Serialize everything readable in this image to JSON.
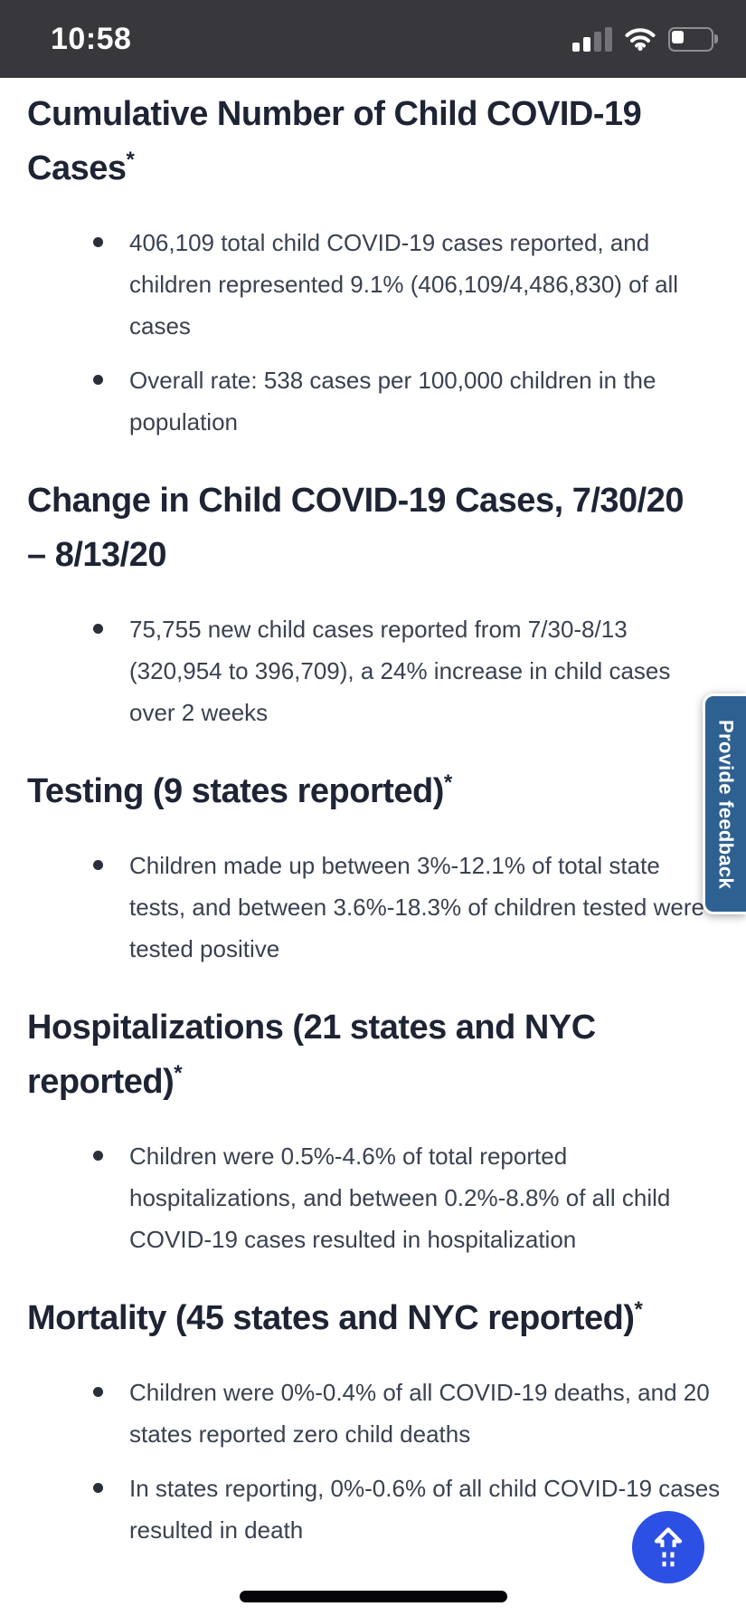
{
  "status_bar": {
    "time": "10:58",
    "signal_level": "2 of 4 bars",
    "wifi": "full",
    "battery_level": "low"
  },
  "page": {
    "sections": [
      {
        "heading": "Cumulative Number of Child COVID-19\nCases",
        "heading_sup": "*",
        "bullets": [
          "406,109 total child COVID-19 cases reported, and children represented 9.1% (406,109/4,486,830) of all cases",
          "Overall rate: 538 cases per 100,000 children in the population"
        ]
      },
      {
        "heading": "Change in Child COVID-19 Cases, 7/30/20\n– 8/13/20",
        "heading_sup": "",
        "bullets": [
          "75,755 new child cases reported from 7/30-8/13 (320,954 to 396,709), a 24% increase in child cases over 2 weeks"
        ]
      },
      {
        "heading": "Testing (9 states reported)",
        "heading_sup": "*",
        "bullets": [
          "Children made up between 3%-12.1% of total state tests, and between 3.6%-18.3% of children tested were tested positive"
        ]
      },
      {
        "heading": "Hospitalizations (21 states and NYC\nreported)",
        "heading_sup": "*",
        "bullets": [
          "Children were 0.5%-4.6% of total reported hospitalizations, and between 0.2%-8.8% of all child COVID-19 cases resulted in hospitalization"
        ]
      },
      {
        "heading": "Mortality (45 states and NYC reported)",
        "heading_sup": "*",
        "bullets": [
          "Children were 0%-0.4% of all COVID-19 deaths, and 20 states reported zero child deaths",
          "In states reporting, 0%-0.6% of all child COVID-19 cases resulted in death"
        ]
      }
    ]
  },
  "feedback_tab": {
    "label": "Provide feedback"
  },
  "scroll_top_button": {
    "icon": "arrow-up-dashed-icon"
  },
  "colors": {
    "status_bar_bg": "#38383c",
    "heading_text": "#1e2434",
    "body_text": "#3a4150",
    "feedback_bg": "#2e6191",
    "scroll_button_bg": "#2c4fe4"
  }
}
